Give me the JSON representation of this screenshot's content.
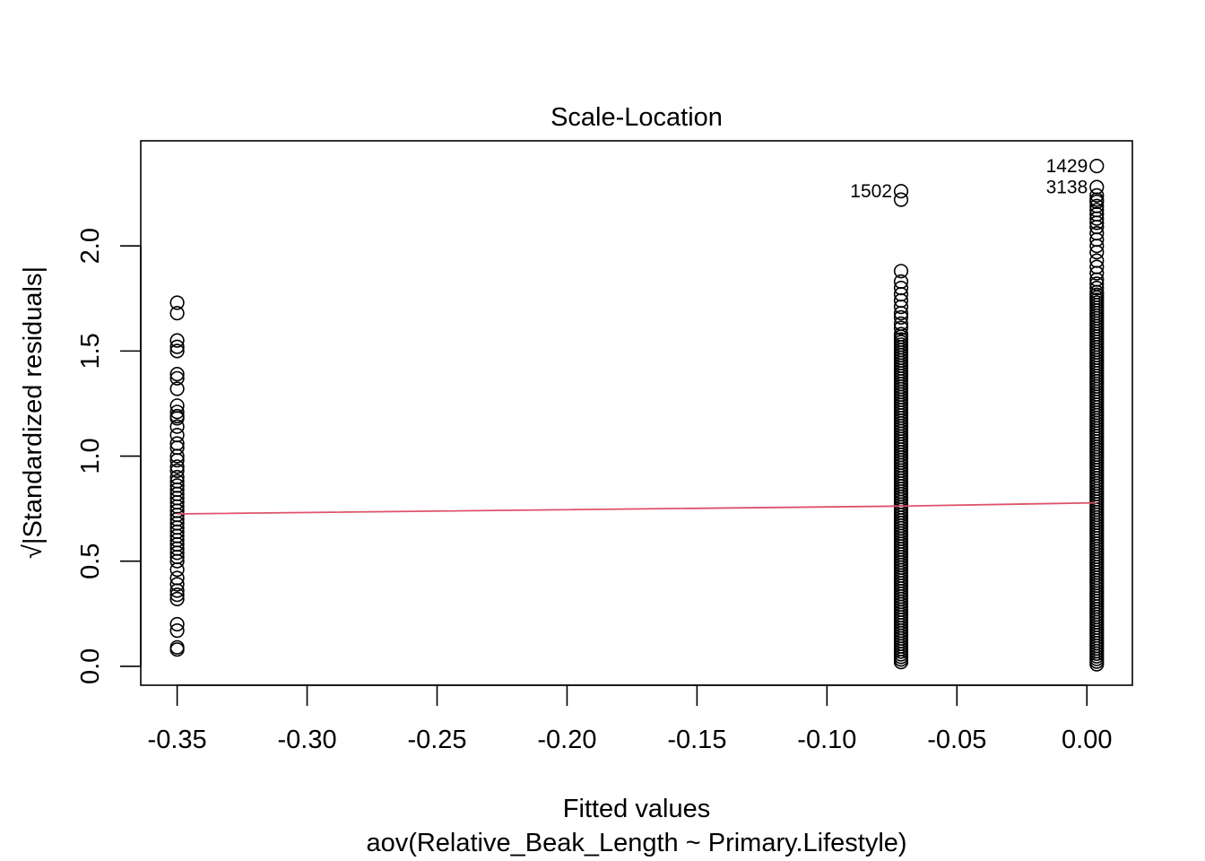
{
  "chart_data": {
    "type": "scatter",
    "title": "Scale-Location",
    "xlabel": "Fitted values",
    "subtitle": "aov(Relative_Beak_Length ~ Primary.Lifestyle)",
    "ylabel": "√|Standardized residuals|",
    "xlim": [
      -0.364,
      0.0175
    ],
    "ylim": [
      -0.09,
      2.5
    ],
    "x_ticks": [
      -0.35,
      -0.3,
      -0.25,
      -0.2,
      -0.15,
      -0.1,
      -0.05,
      0.0
    ],
    "x_tick_labels": [
      "-0.35",
      "-0.30",
      "-0.25",
      "-0.20",
      "-0.15",
      "-0.10",
      "-0.05",
      "0.00"
    ],
    "y_ticks": [
      0.0,
      0.5,
      1.0,
      1.5,
      2.0
    ],
    "y_tick_labels": [
      "0.0",
      "0.5",
      "1.0",
      "1.5",
      "2.0"
    ],
    "grid": false,
    "series": [
      {
        "x": -0.35,
        "values": [
          1.73,
          1.68,
          1.55,
          1.52,
          1.5,
          1.39,
          1.37,
          1.32,
          1.24,
          1.21,
          1.19,
          1.18,
          1.14,
          1.1,
          1.06,
          1.04,
          1.0,
          0.98,
          0.95,
          0.93,
          0.9,
          0.88,
          0.86,
          0.84,
          0.82,
          0.8,
          0.78,
          0.76,
          0.74,
          0.72,
          0.7,
          0.68,
          0.66,
          0.64,
          0.62,
          0.6,
          0.58,
          0.56,
          0.54,
          0.52,
          0.5,
          0.46,
          0.42,
          0.39,
          0.36,
          0.34,
          0.32,
          0.2,
          0.17,
          0.09,
          0.08
        ]
      },
      {
        "x": -0.0715,
        "values": [
          2.26,
          2.22,
          1.88,
          1.83,
          1.8,
          1.77,
          1.74,
          1.71,
          1.68,
          1.66,
          1.63,
          1.61
        ],
        "range": [
          0.02,
          1.58
        ]
      },
      {
        "x": 0.0038,
        "values": [
          2.38,
          2.28,
          2.24,
          2.22,
          2.21,
          2.19,
          2.17,
          2.15,
          2.13,
          2.11,
          2.09,
          2.06,
          2.03,
          2.0,
          1.97,
          1.93,
          1.9,
          1.87,
          1.84,
          1.82,
          1.8
        ],
        "range": [
          0.01,
          1.78
        ]
      }
    ],
    "trend_line": {
      "x": [
        -0.35,
        -0.0715,
        0.0038
      ],
      "y": [
        0.725,
        0.762,
        0.778
      ],
      "color": "#DF536B"
    },
    "annotations": [
      {
        "label": "1429",
        "x": 0.0038,
        "y": 2.38
      },
      {
        "label": "3138",
        "x": 0.0038,
        "y": 2.28
      },
      {
        "label": "1502",
        "x": -0.0715,
        "y": 2.26
      }
    ]
  }
}
